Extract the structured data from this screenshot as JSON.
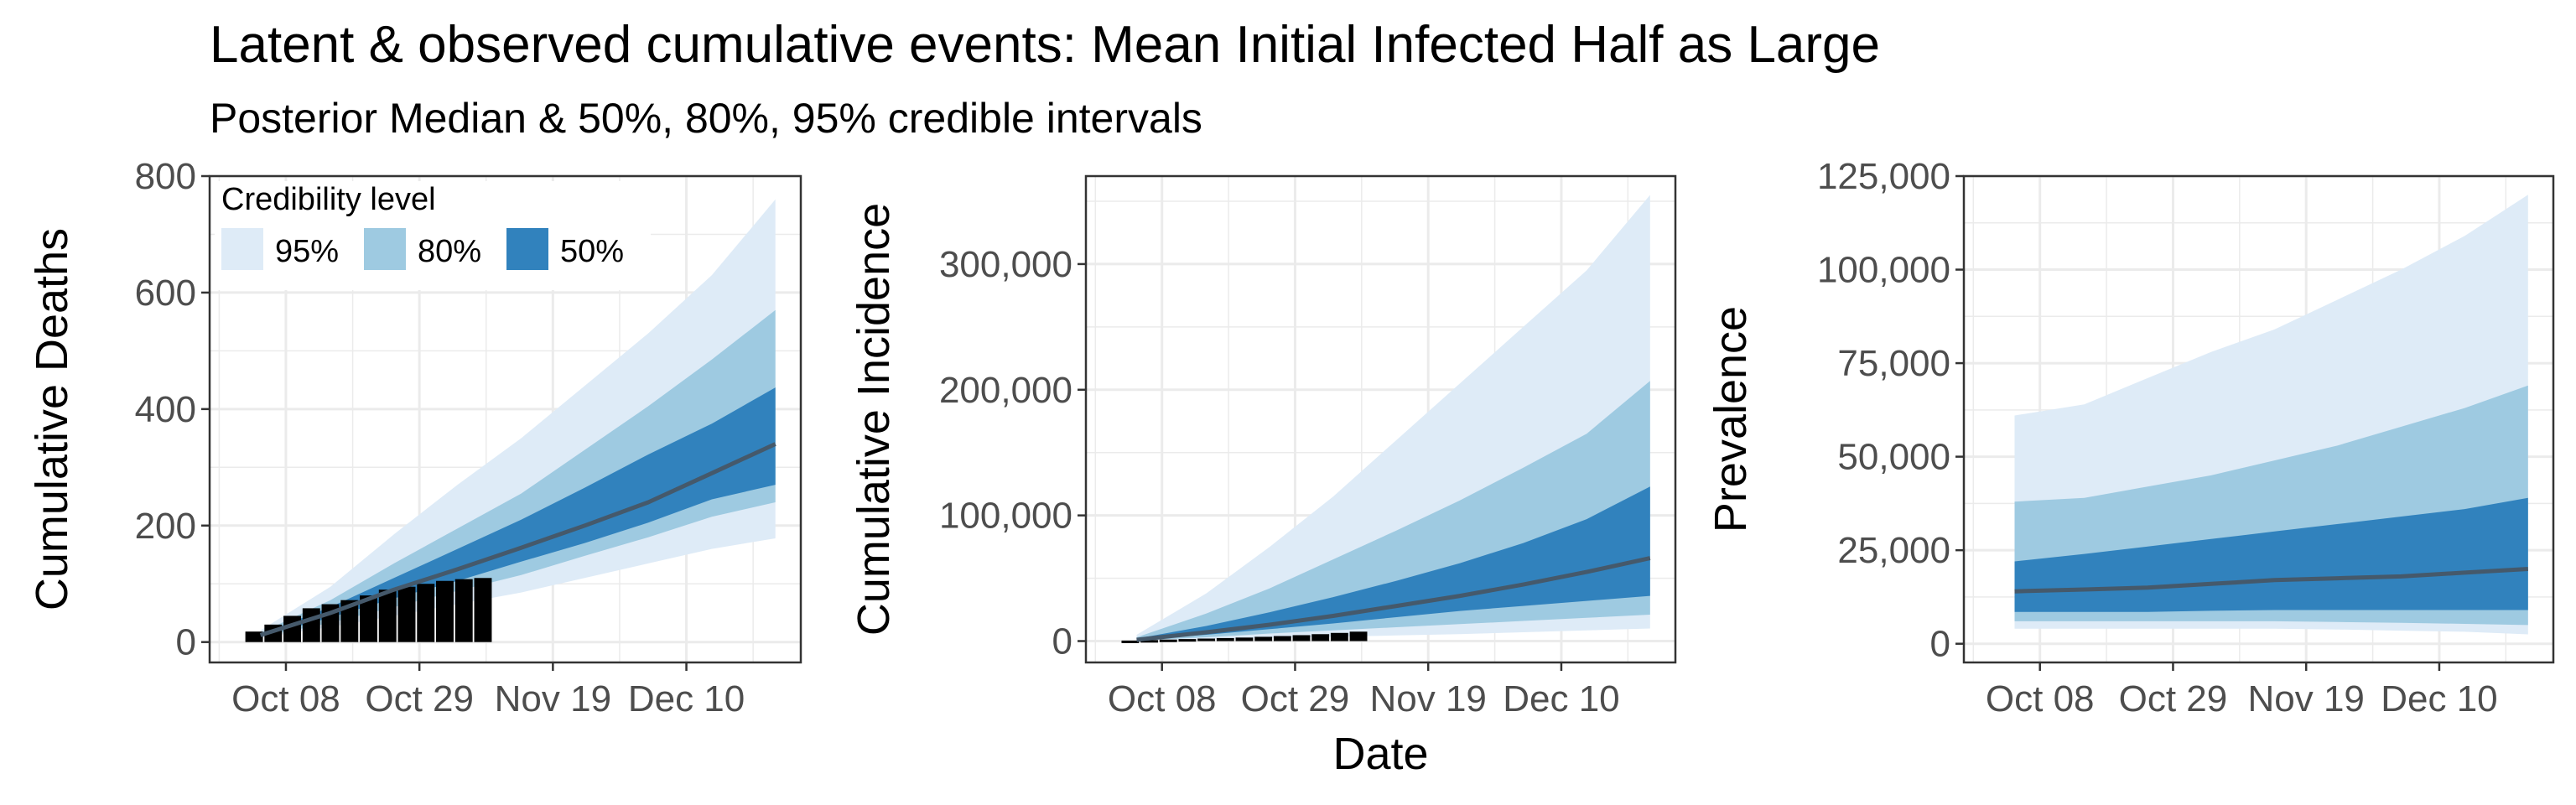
{
  "title": "Latent & observed cumulative events: Mean Initial Infected Half as Large",
  "subtitle": "Posterior Median & 50%, 80%, 95% credible intervals",
  "colors": {
    "ci95": "#deebf7",
    "ci80": "#9ecae1",
    "ci50": "#3182bd",
    "median": "#45596b",
    "observed": "#000000",
    "grid": "#ebebeb",
    "panel_border": "#333333",
    "tick_text": "#4d4d4d"
  },
  "legend": {
    "title": "Credibility level",
    "items": [
      {
        "label": "95%",
        "color": "#deebf7"
      },
      {
        "label": "80%",
        "color": "#9ecae1"
      },
      {
        "label": "50%",
        "color": "#3182bd"
      }
    ]
  },
  "chart_data": [
    {
      "type": "area",
      "ylabel": "Cumulative Deaths",
      "xlabel": "",
      "x_ticks": [
        "Oct 08",
        "Oct 29",
        "Nov 19",
        "Dec 10"
      ],
      "x_tick_days": [
        8,
        29,
        50,
        71
      ],
      "xlim_days": [
        -4,
        89
      ],
      "ylim": [
        -35,
        800
      ],
      "y_ticks": [
        0,
        200,
        400,
        600,
        800
      ],
      "y_tick_labels": [
        "0",
        "200",
        "400",
        "600",
        "800"
      ],
      "legend": "top-left",
      "observed": {
        "days": [
          3,
          6,
          9,
          12,
          15,
          18,
          21,
          24,
          27,
          30,
          33,
          36,
          39
        ],
        "values": [
          18,
          30,
          45,
          58,
          65,
          72,
          80,
          90,
          95,
          100,
          105,
          108,
          110
        ]
      },
      "bands": {
        "days": [
          4,
          15,
          25,
          35,
          45,
          55,
          65,
          75,
          85
        ],
        "median": [
          12,
          50,
          90,
          125,
          162,
          200,
          240,
          290,
          340
        ],
        "lo95": [
          7,
          26,
          45,
          65,
          85,
          110,
          135,
          160,
          178
        ],
        "hi95": [
          20,
          95,
          185,
          270,
          350,
          440,
          530,
          630,
          760
        ],
        "lo80": [
          9,
          33,
          60,
          88,
          115,
          148,
          180,
          215,
          240
        ],
        "hi80": [
          16,
          72,
          135,
          195,
          255,
          330,
          405,
          485,
          570
        ],
        "lo50": [
          10,
          42,
          75,
          105,
          138,
          170,
          205,
          245,
          270
        ],
        "hi50": [
          14,
          60,
          110,
          160,
          210,
          265,
          322,
          375,
          437
        ]
      }
    },
    {
      "type": "area",
      "ylabel": "Cumulative Incidence",
      "xlabel": "Date",
      "x_ticks": [
        "Oct 08",
        "Oct 29",
        "Nov 19",
        "Dec 10"
      ],
      "x_tick_days": [
        8,
        29,
        50,
        71
      ],
      "xlim_days": [
        -4,
        89
      ],
      "ylim": [
        -17000,
        370000
      ],
      "y_ticks": [
        0,
        100000,
        200000,
        300000
      ],
      "y_tick_labels": [
        "0",
        "100,000",
        "200,000",
        "300,000"
      ],
      "observed": {
        "days": [
          3,
          6,
          9,
          12,
          15,
          18,
          21,
          24,
          27,
          30,
          33,
          36,
          39
        ],
        "values": [
          400,
          800,
          1200,
          1600,
          2000,
          2400,
          2800,
          3400,
          4000,
          4700,
          5500,
          6500,
          7500
        ]
      },
      "bands": {
        "days": [
          4,
          15,
          25,
          35,
          45,
          55,
          65,
          75,
          85
        ],
        "median": [
          1000,
          7000,
          13000,
          20000,
          28000,
          36000,
          45000,
          55000,
          66000
        ],
        "lo95": [
          300,
          1500,
          2500,
          3500,
          4500,
          5500,
          7000,
          8500,
          10000
        ],
        "hi95": [
          5000,
          38000,
          75000,
          115000,
          160000,
          205000,
          250000,
          295000,
          355000
        ],
        "lo80": [
          500,
          3000,
          6000,
          8500,
          11000,
          13500,
          16000,
          18500,
          21000
        ],
        "hi80": [
          3000,
          22000,
          42000,
          65000,
          88000,
          112000,
          138000,
          165000,
          207000
        ],
        "lo50": [
          800,
          5000,
          9500,
          14000,
          19000,
          24000,
          28000,
          32000,
          36000
        ],
        "hi50": [
          2000,
          12000,
          23000,
          35000,
          48000,
          62000,
          78000,
          97000,
          123000
        ]
      }
    },
    {
      "type": "area",
      "ylabel": "Prevalence",
      "xlabel": "",
      "x_ticks": [
        "Oct 08",
        "Oct 29",
        "Nov 19",
        "Dec 10"
      ],
      "x_tick_days": [
        8,
        29,
        50,
        71
      ],
      "xlim_days": [
        -4,
        89
      ],
      "ylim": [
        -5000,
        125000
      ],
      "y_ticks": [
        0,
        25000,
        50000,
        75000,
        100000,
        125000
      ],
      "y_tick_labels": [
        "0",
        "25,000",
        "50,000",
        "75,000",
        "100,000",
        "125,000"
      ],
      "bands": {
        "days": [
          4,
          15,
          25,
          35,
          45,
          55,
          65,
          75,
          85
        ],
        "median": [
          14000,
          14500,
          15000,
          16000,
          17000,
          17500,
          18000,
          19000,
          20000
        ],
        "lo95": [
          4000,
          4000,
          4000,
          4000,
          4000,
          3800,
          3500,
          3200,
          2500
        ],
        "hi95": [
          61000,
          64000,
          71000,
          78000,
          84000,
          92000,
          100000,
          109000,
          120000
        ],
        "lo80": [
          6000,
          6000,
          6000,
          6000,
          6000,
          5800,
          5600,
          5300,
          5000
        ],
        "hi80": [
          38000,
          39000,
          42000,
          45000,
          49000,
          53000,
          58000,
          63000,
          69000
        ],
        "lo50": [
          8500,
          8500,
          8500,
          8800,
          9000,
          9000,
          9000,
          9000,
          9000
        ],
        "hi50": [
          22000,
          24000,
          26000,
          28000,
          30000,
          32000,
          34000,
          36000,
          39000
        ]
      }
    }
  ]
}
